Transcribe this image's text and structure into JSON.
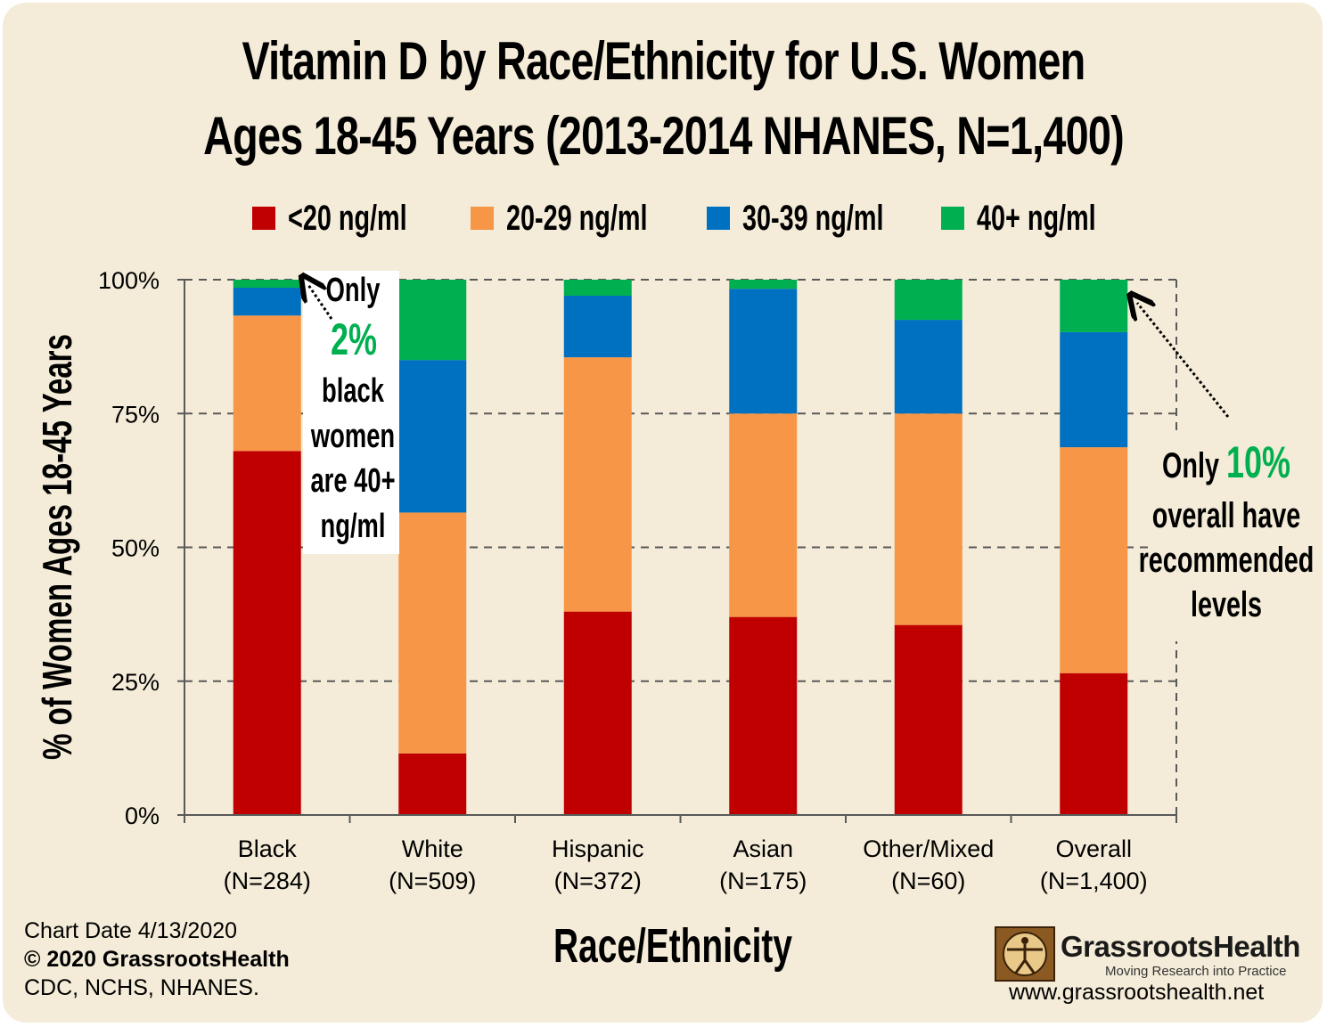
{
  "chart_data": {
    "type": "bar",
    "stacked": true,
    "title_lines": [
      "Vitamin D by Race/Ethnicity for U.S. Women",
      "Ages 18-45 Years (2013-2014 NHANES, N=1,400)"
    ],
    "xlabel": "Race/Ethnicity",
    "ylabel": "% of Women Ages 18-45 Years",
    "ylim": [
      0,
      100
    ],
    "yticks": [
      0,
      25,
      50,
      75,
      100
    ],
    "ytick_labels": [
      "0%",
      "25%",
      "50%",
      "75%",
      "100%"
    ],
    "grid": "dashed horizontal",
    "legend_position": "top",
    "categories": [
      {
        "name": "Black",
        "n": "(N=284)"
      },
      {
        "name": "White",
        "n": "(N=509)"
      },
      {
        "name": "Hispanic",
        "n": "(N=372)"
      },
      {
        "name": "Asian",
        "n": "(N=175)"
      },
      {
        "name": "Other/Mixed",
        "n": "(N=60)"
      },
      {
        "name": "Overall",
        "n": "(N=1,400)"
      }
    ],
    "series": [
      {
        "name": "<20 ng/ml",
        "color": "#c00000",
        "values": [
          68,
          11.5,
          38,
          37,
          35.5,
          26.5
        ]
      },
      {
        "name": "20-29 ng/ml",
        "color": "#f79646",
        "values": [
          25.3,
          45,
          47.5,
          38,
          39.5,
          42.2
        ]
      },
      {
        "name": "30-39 ng/ml",
        "color": "#0070c0",
        "values": [
          5.2,
          28.5,
          11.5,
          23.3,
          17.5,
          21.5
        ]
      },
      {
        "name": "40+ ng/ml",
        "color": "#00b050",
        "values": [
          1.5,
          15,
          3,
          1.7,
          7.5,
          9.8
        ]
      }
    ],
    "annotations": [
      {
        "lines": [
          "Only",
          "2%",
          "black",
          "women",
          "are 40+",
          "ng/ml"
        ],
        "highlight": "2%"
      },
      {
        "lines": [
          "Only 10%",
          "overall have",
          "recommended",
          "levels"
        ],
        "highlight": "10%"
      }
    ]
  },
  "footer": {
    "date": "Chart Date 4/13/2020",
    "copyright": "© 2020 GrassrootsHealth",
    "source": "CDC, NCHS, NHANES."
  },
  "logo": {
    "name": "GrassrootsHealth",
    "tagline": "Moving Research into Practice",
    "url": "www.grassrootshealth.net"
  },
  "colors": {
    "highlight_green": "#00b050"
  }
}
